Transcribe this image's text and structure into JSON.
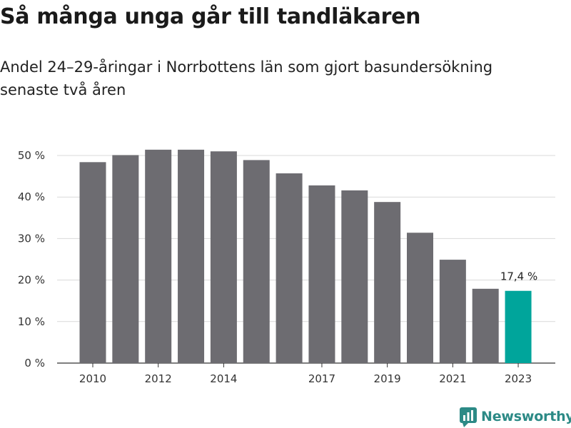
{
  "title": "Så många unga går till tandläkaren",
  "subtitle": "Andel 24–29-åringar i Norrbottens län som gjort basundersökning senaste två åren",
  "brand": {
    "name": "Newsworthy",
    "color": "#2c8a86",
    "icon": "newsworthy-logo-icon"
  },
  "colors": {
    "bar": "#6d6c71",
    "highlight": "#00a59b",
    "grid": "#d9d9d9",
    "axis": "#333333"
  },
  "chart_data": {
    "type": "bar",
    "title": "Så många unga går till tandläkaren",
    "subtitle": "Andel 24–29-åringar i Norrbottens län som gjort basundersökning senaste två åren",
    "categories": [
      "2010",
      "2011",
      "2012",
      "2013",
      "2014",
      "2015",
      "2016",
      "2017",
      "2018",
      "2019",
      "2020",
      "2021",
      "2022",
      "2023"
    ],
    "values": [
      48.4,
      50.1,
      51.4,
      51.4,
      51.0,
      48.9,
      45.7,
      42.8,
      41.6,
      38.8,
      31.4,
      24.9,
      17.9,
      17.4
    ],
    "highlight_index": 13,
    "annotation": {
      "index": 13,
      "text": "17,4 %"
    },
    "x_tick_labels": [
      "2010",
      "2012",
      "2014",
      "2017",
      "2019",
      "2021",
      "2023"
    ],
    "y_ticks": [
      0,
      10,
      20,
      30,
      40,
      50
    ],
    "y_tick_labels": [
      "0 %",
      "10 %",
      "20 %",
      "30 %",
      "40 %",
      "50 %"
    ],
    "ylim": [
      0,
      52
    ],
    "grid": true,
    "xlabel": "",
    "ylabel": ""
  }
}
